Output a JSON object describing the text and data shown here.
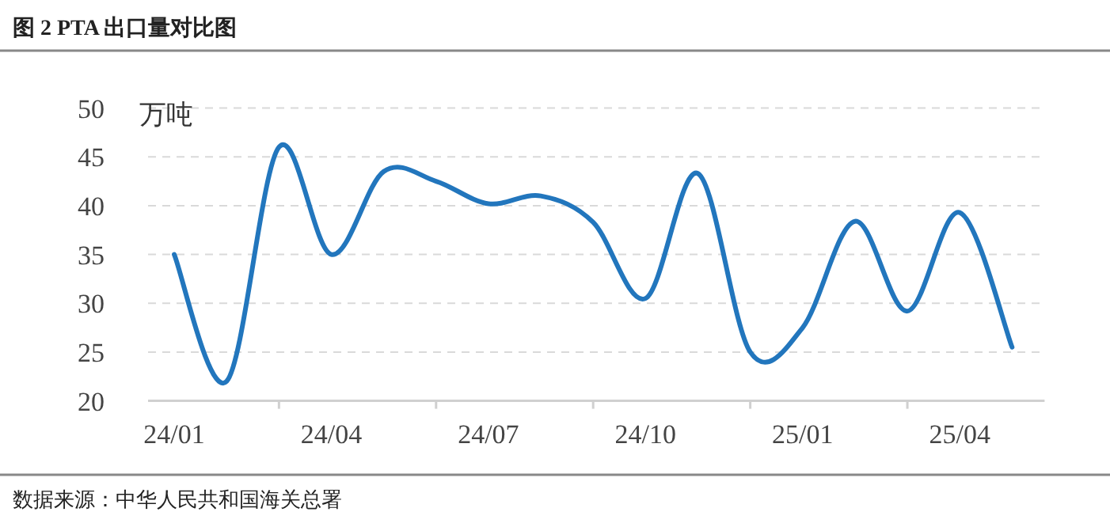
{
  "chart_data": {
    "type": "line",
    "title": "图 2 PTA 出口量对比图",
    "ylabel": "万吨",
    "annotations": [
      "数据来源：中华人民共和国海关总署"
    ],
    "categories": [
      "24/01",
      null,
      null,
      "24/04",
      null,
      null,
      "24/07",
      null,
      null,
      "24/10",
      null,
      null,
      "25/01",
      null,
      null,
      "25/04",
      null
    ],
    "series": [
      {
        "color": "#2276bd",
        "values": [
          35.0,
          22.0,
          46.0,
          35.0,
          43.5,
          42.5,
          40.2,
          41.0,
          38.3,
          30.5,
          43.3,
          25.0,
          27.5,
          38.4,
          29.2,
          39.3,
          25.5
        ]
      }
    ],
    "ylim": [
      20,
      50
    ],
    "yticks": [
      20,
      25,
      30,
      35,
      40,
      45,
      50
    ],
    "grid": "y"
  }
}
